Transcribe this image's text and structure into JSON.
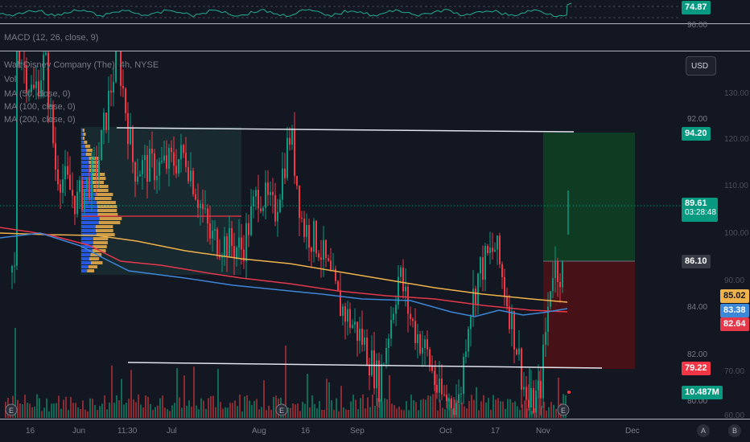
{
  "rsi": {
    "value": "74.87",
    "value_color": "#089981",
    "line_color": "#22ab94"
  },
  "macd": {
    "label": "MACD (12, 26, close, 9)"
  },
  "legend": {
    "symbol": "Walt Disney Company (The), 4h, NYSE",
    "vol": "Vol",
    "ma50": "MA (50, close, 0)",
    "ma100": "MA (100, close, 0)",
    "ma200": "MA (200, close, 0)"
  },
  "currency_button": "USD",
  "price_axis": {
    "labels": [
      {
        "text": "96.00",
        "value": 96
      },
      {
        "text": "92.00",
        "value": 92
      },
      {
        "text": "88.00",
        "value": 88
      },
      {
        "text": "84.00",
        "value": 84
      },
      {
        "text": "82.00",
        "value": 82
      },
      {
        "text": "80.00",
        "value": 80
      }
    ]
  },
  "volume_axis": {
    "labels": [
      "130.00",
      "120.00",
      "110.00",
      "100.00",
      "90.00",
      "70.00",
      "60.00"
    ]
  },
  "badges": {
    "target": {
      "text": "94.20",
      "bg": "#089981",
      "fg": "#ffffff"
    },
    "last": {
      "price": "89.61",
      "countdown": "03:28:48",
      "bg": "#089981",
      "fg": "#ffffff"
    },
    "entry": {
      "text": "86.10",
      "bg": "#363a45",
      "fg": "#ffffff"
    },
    "ma200": {
      "text": "85.02",
      "bg": "#f0b24b",
      "fg": "#131722"
    },
    "ma100": {
      "text": "83.38",
      "bg": "#3d87d9",
      "fg": "#ffffff"
    },
    "ma50": {
      "text": "82.64",
      "bg": "#e5394b",
      "fg": "#ffffff"
    },
    "stop": {
      "text": "79.22",
      "bg": "#f23645",
      "fg": "#ffffff"
    },
    "volume": {
      "text": "10.487M",
      "bg": "#089981",
      "fg": "#ffffff"
    }
  },
  "time_axis": {
    "labels": [
      "16",
      "Jun",
      "11:30",
      "Jul",
      "Aug",
      "16",
      "Sep",
      "Oct",
      "17",
      "Nov",
      "Dec"
    ]
  },
  "scale_buttons": {
    "auto": "A",
    "log": "B"
  },
  "event_marker": "E",
  "colors": {
    "up": "#089981",
    "down": "#f23645",
    "ma50": "#e5394b",
    "ma100": "#3d87d9",
    "ma200": "#f0b24b",
    "channel": "#e0e3eb"
  }
}
